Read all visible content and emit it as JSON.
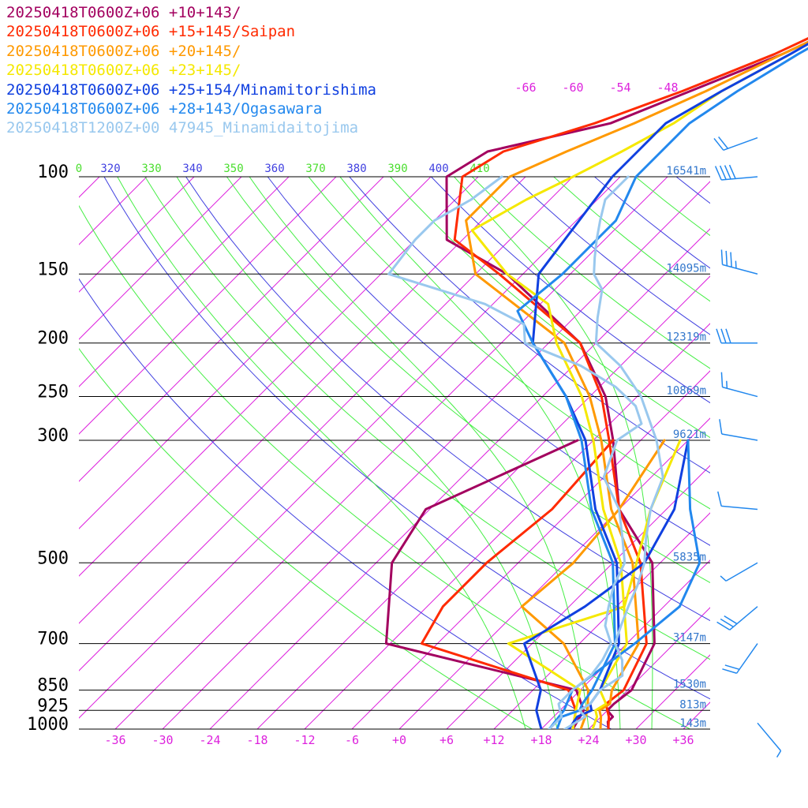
{
  "chart_data": {
    "type": "skew-t",
    "pressure_levels": [
      100,
      150,
      200,
      250,
      300,
      500,
      700,
      850,
      925,
      1000
    ],
    "heights": [
      {
        "p": 100,
        "label": "16541m"
      },
      {
        "p": 150,
        "label": "14095m"
      },
      {
        "p": 200,
        "label": "12319m"
      },
      {
        "p": 250,
        "label": "10869m"
      },
      {
        "p": 300,
        "label": "9621m"
      },
      {
        "p": 500,
        "label": "5835m"
      },
      {
        "p": 700,
        "label": "3147m"
      },
      {
        "p": 850,
        "label": "1530m"
      },
      {
        "p": 925,
        "label": "813m"
      },
      {
        "p": 1000,
        "label": "143m"
      }
    ],
    "temp_ticks": [
      "-36",
      "-30",
      "-24",
      "-18",
      "-12",
      "-6",
      "+0",
      "+6",
      "+12",
      "+18",
      "+24",
      "+30",
      "+36"
    ],
    "theta_labels": [
      {
        "text": "0",
        "color": "#4ade2e"
      },
      {
        "text": "320",
        "color": "#4040e0"
      },
      {
        "text": "330",
        "color": "#4ade2e"
      },
      {
        "text": "340",
        "color": "#4040e0"
      },
      {
        "text": "350",
        "color": "#4ade2e"
      },
      {
        "text": "360",
        "color": "#4040e0"
      },
      {
        "text": "370",
        "color": "#4ade2e"
      },
      {
        "text": "380",
        "color": "#4040e0"
      },
      {
        "text": "390",
        "color": "#4ade2e"
      },
      {
        "text": "400",
        "color": "#4040e0"
      },
      {
        "text": "410",
        "color": "#4ade2e"
      }
    ],
    "top_temp_labels": [
      "-66",
      "-60",
      "-54",
      "-48"
    ],
    "series": [
      {
        "name": "20250418T0600Z+06 +10+143/",
        "color": "#a3005f",
        "temperature": [
          [
            1000,
            26.5
          ],
          [
            970,
            25.5
          ],
          [
            950,
            25.5
          ],
          [
            925,
            24
          ],
          [
            900,
            24
          ],
          [
            850,
            24.5
          ],
          [
            700,
            21.5
          ],
          [
            500,
            11
          ],
          [
            400,
            0
          ],
          [
            300,
            -9.5
          ],
          [
            250,
            -16
          ],
          [
            200,
            -26
          ],
          [
            150,
            -44
          ],
          [
            130,
            -56
          ],
          [
            100,
            -64
          ],
          [
            90,
            -62
          ],
          [
            80,
            -50
          ],
          [
            70,
            -44
          ],
          [
            60,
            -37
          ],
          [
            55,
            -34
          ]
        ],
        "dewpoint": [
          [
            1000,
            22
          ],
          [
            925,
            21
          ],
          [
            850,
            17.5
          ],
          [
            700,
            -12.5
          ],
          [
            500,
            -22
          ],
          [
            400,
            -24.5
          ],
          [
            300,
            -14
          ]
        ]
      },
      {
        "name": "20250418T0600Z+06 +15+145/Saipan",
        "color": "#ff2a00",
        "temperature": [
          [
            1000,
            26.5
          ],
          [
            950,
            25
          ],
          [
            925,
            24
          ],
          [
            900,
            23
          ],
          [
            850,
            23.5
          ],
          [
            700,
            20.5
          ],
          [
            500,
            9.5
          ],
          [
            400,
            0
          ],
          [
            300,
            -10
          ],
          [
            250,
            -16.5
          ],
          [
            200,
            -26
          ],
          [
            150,
            -45
          ],
          [
            130,
            -55
          ],
          [
            100,
            -62
          ],
          [
            90,
            -60
          ],
          [
            80,
            -52
          ],
          [
            70,
            -45
          ],
          [
            60,
            -38
          ],
          [
            55,
            -35
          ]
        ],
        "dewpoint": [
          [
            1000,
            22
          ],
          [
            925,
            20
          ],
          [
            850,
            16.5
          ],
          [
            700,
            -8
          ],
          [
            600,
            -10
          ],
          [
            500,
            -10
          ],
          [
            400,
            -8.5
          ],
          [
            300,
            -9.5
          ]
        ]
      },
      {
        "name": "20250418T0600Z+06 +20+145/",
        "color": "#ff9900",
        "temperature": [
          [
            1000,
            25.5
          ],
          [
            950,
            24
          ],
          [
            925,
            23
          ],
          [
            900,
            23.5
          ],
          [
            850,
            22
          ],
          [
            700,
            19.5
          ],
          [
            500,
            8.5
          ],
          [
            400,
            -1
          ],
          [
            300,
            -11
          ],
          [
            250,
            -18
          ],
          [
            200,
            -28
          ],
          [
            150,
            -48
          ],
          [
            120,
            -56
          ],
          [
            100,
            -56
          ],
          [
            90,
            -52
          ],
          [
            80,
            -47
          ],
          [
            70,
            -42
          ],
          [
            60,
            -37
          ],
          [
            55,
            -34
          ]
        ],
        "dewpoint": [
          [
            1000,
            23
          ],
          [
            925,
            21.5
          ],
          [
            850,
            19
          ],
          [
            700,
            10
          ],
          [
            600,
            0
          ],
          [
            500,
            1
          ],
          [
            400,
            0
          ],
          [
            300,
            -3
          ]
        ]
      },
      {
        "name": "20250418T0600Z+06 +23+145/",
        "color": "#f5e800",
        "temperature": [
          [
            1000,
            24.5
          ],
          [
            950,
            23.5
          ],
          [
            925,
            22.5
          ],
          [
            900,
            23
          ],
          [
            850,
            20.5
          ],
          [
            700,
            18
          ],
          [
            500,
            7
          ],
          [
            400,
            -2
          ],
          [
            300,
            -12
          ],
          [
            250,
            -19
          ],
          [
            200,
            -29
          ],
          [
            170,
            -35
          ],
          [
            150,
            -44
          ],
          [
            125,
            -54
          ],
          [
            110,
            -51
          ],
          [
            100,
            -48
          ],
          [
            90,
            -45
          ],
          [
            80,
            -42
          ],
          [
            70,
            -40
          ],
          [
            60,
            -36
          ]
        ],
        "dewpoint": [
          [
            1000,
            22
          ],
          [
            925,
            20
          ],
          [
            850,
            18
          ],
          [
            700,
            3
          ],
          [
            600,
            13
          ],
          [
            500,
            9
          ],
          [
            400,
            4
          ],
          [
            300,
            -1
          ]
        ]
      },
      {
        "name": "20250418T0600Z+06 +25+154/Minamitorishima",
        "color": "#1040e0",
        "temperature": [
          [
            1000,
            21.5
          ],
          [
            950,
            21
          ],
          [
            925,
            22
          ],
          [
            900,
            21
          ],
          [
            850,
            20.5
          ],
          [
            700,
            17
          ],
          [
            500,
            6.5
          ],
          [
            400,
            -3
          ],
          [
            300,
            -13
          ],
          [
            250,
            -21
          ],
          [
            200,
            -32
          ],
          [
            150,
            -40
          ],
          [
            100,
            -43
          ],
          [
            90,
            -43
          ],
          [
            80,
            -43
          ],
          [
            70,
            -40
          ],
          [
            60,
            -36
          ],
          [
            55,
            -34
          ]
        ],
        "dewpoint": [
          [
            1000,
            18
          ],
          [
            925,
            15
          ],
          [
            850,
            13
          ],
          [
            700,
            5
          ],
          [
            600,
            8
          ],
          [
            500,
            10
          ],
          [
            400,
            7
          ],
          [
            300,
            0
          ]
        ]
      },
      {
        "name": "20250418T0600Z+06 +28+143/Ogasawara",
        "color": "#2288ee",
        "temperature": [
          [
            1000,
            20
          ],
          [
            950,
            19
          ],
          [
            925,
            20.5
          ],
          [
            900,
            20
          ],
          [
            850,
            19.5
          ],
          [
            700,
            16.5
          ],
          [
            500,
            6
          ],
          [
            400,
            -3.5
          ],
          [
            300,
            -13.5
          ],
          [
            250,
            -21
          ],
          [
            200,
            -32
          ],
          [
            175,
            -38
          ],
          [
            150,
            -37
          ],
          [
            120,
            -37
          ],
          [
            100,
            -40
          ],
          [
            90,
            -40
          ],
          [
            80,
            -40
          ],
          [
            70,
            -38
          ],
          [
            60,
            -35
          ],
          [
            55,
            -33
          ]
        ],
        "dewpoint": [
          [
            1000,
            19
          ],
          [
            925,
            18.5
          ],
          [
            850,
            17
          ],
          [
            700,
            19
          ],
          [
            600,
            20
          ],
          [
            500,
            17
          ],
          [
            400,
            9
          ],
          [
            300,
            0
          ]
        ]
      },
      {
        "name": "20250418T1200Z+00 47945_Minamidaitojima",
        "color": "#99c8ee",
        "temperature": [
          [
            1000,
            21
          ],
          [
            950,
            22
          ],
          [
            925,
            20.5
          ],
          [
            900,
            21
          ],
          [
            850,
            20.5
          ],
          [
            800,
            21.5
          ],
          [
            750,
            19.5
          ],
          [
            700,
            16.5
          ],
          [
            650,
            15
          ],
          [
            600,
            13.5
          ],
          [
            550,
            12
          ],
          [
            500,
            10
          ],
          [
            450,
            7
          ],
          [
            400,
            4
          ],
          [
            350,
            1.5
          ],
          [
            300,
            -4
          ],
          [
            250,
            -11.5
          ],
          [
            220,
            -18
          ],
          [
            200,
            -24
          ],
          [
            180,
            -27
          ],
          [
            160,
            -30
          ],
          [
            150,
            -33
          ],
          [
            140,
            -35
          ],
          [
            130,
            -37
          ],
          [
            120,
            -39
          ],
          [
            110,
            -41
          ],
          [
            100,
            -41
          ]
        ],
        "dewpoint": [
          [
            1000,
            19
          ],
          [
            950,
            19
          ],
          [
            925,
            18
          ],
          [
            900,
            17
          ],
          [
            850,
            17
          ],
          [
            800,
            17.5
          ],
          [
            750,
            17
          ],
          [
            700,
            16
          ],
          [
            650,
            13
          ],
          [
            600,
            11
          ],
          [
            550,
            9
          ],
          [
            500,
            7.5
          ],
          [
            450,
            4
          ],
          [
            400,
            0
          ],
          [
            350,
            -6
          ],
          [
            300,
            -9
          ],
          [
            280,
            -8
          ],
          [
            260,
            -11
          ],
          [
            240,
            -16
          ],
          [
            220,
            -23
          ],
          [
            200,
            -33
          ],
          [
            185,
            -35.5
          ],
          [
            170,
            -43
          ],
          [
            150,
            -59
          ],
          [
            130,
            -60
          ],
          [
            120,
            -60
          ],
          [
            110,
            -58
          ],
          [
            100,
            -57
          ]
        ]
      }
    ],
    "wind_barbs": [
      {
        "p": 85,
        "dir": 250,
        "speed": 20
      },
      {
        "p": 100,
        "dir": 265,
        "speed": 40
      },
      {
        "p": 150,
        "dir": 285,
        "speed": 35
      },
      {
        "p": 200,
        "dir": 270,
        "speed": 30
      },
      {
        "p": 250,
        "dir": 285,
        "speed": 15
      },
      {
        "p": 300,
        "dir": 280,
        "speed": 10
      },
      {
        "p": 400,
        "dir": 275,
        "speed": 10
      },
      {
        "p": 500,
        "dir": 240,
        "speed": 5
      },
      {
        "p": 600,
        "dir": 230,
        "speed": 30
      },
      {
        "p": 700,
        "dir": 215,
        "speed": 20
      },
      {
        "p": 975,
        "dir": 140,
        "speed": 5
      }
    ]
  },
  "colors": {
    "isotherm": "#dd22dd",
    "theta": "#4040e0",
    "moist": "#44ee44",
    "isobar": "#000000",
    "height_label": "#3377cc",
    "wind": "#2288ee"
  }
}
